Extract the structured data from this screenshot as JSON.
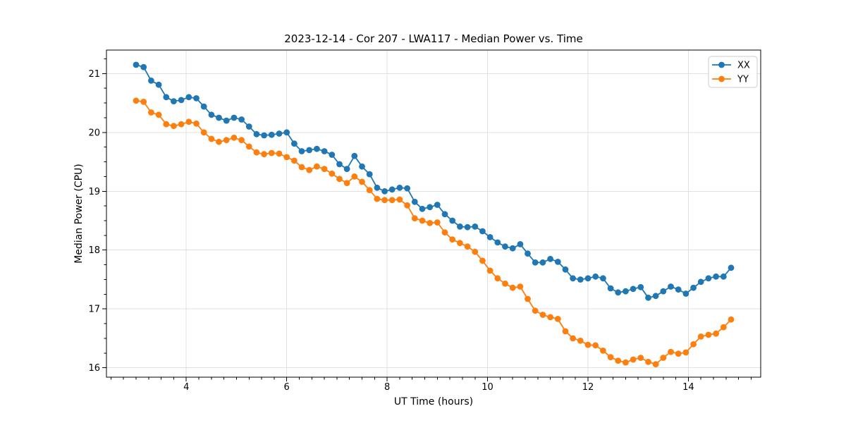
{
  "chart_data": {
    "type": "line",
    "title": "2023-12-14 - Cor 207 - LWA117 - Median Power vs. Time",
    "xlabel": "UT Time (hours)",
    "ylabel": "Median Power (CPU)",
    "xlim": [
      2.41,
      15.44
    ],
    "ylim": [
      15.84,
      21.4
    ],
    "x_ticks": [
      4,
      6,
      8,
      10,
      12,
      14
    ],
    "y_ticks": [
      16,
      17,
      18,
      19,
      20,
      21
    ],
    "minor_tick_step_x": 0.25,
    "minor_tick_step_y": 0.25,
    "grid": true,
    "legend_position": "upper right",
    "x": [
      3.0,
      3.15,
      3.3,
      3.45,
      3.6,
      3.75,
      3.9,
      4.05,
      4.2,
      4.35,
      4.5,
      4.65,
      4.8,
      4.95,
      5.1,
      5.25,
      5.4,
      5.55,
      5.7,
      5.85,
      6.0,
      6.15,
      6.3,
      6.45,
      6.6,
      6.75,
      6.9,
      7.05,
      7.2,
      7.35,
      7.5,
      7.65,
      7.8,
      7.95,
      8.1,
      8.25,
      8.4,
      8.55,
      8.7,
      8.85,
      9.0,
      9.15,
      9.3,
      9.45,
      9.6,
      9.75,
      9.9,
      10.05,
      10.2,
      10.35,
      10.5,
      10.65,
      10.8,
      10.95,
      11.1,
      11.25,
      11.4,
      11.55,
      11.7,
      11.85,
      12.0,
      12.15,
      12.3,
      12.45,
      12.6,
      12.75,
      12.9,
      13.05,
      13.2,
      13.35,
      13.5,
      13.65,
      13.8,
      13.95,
      14.1,
      14.25,
      14.4,
      14.55,
      14.7,
      14.85
    ],
    "series": [
      {
        "name": "XX",
        "color": "#1f77b4",
        "marker": "circle",
        "values": [
          21.15,
          21.11,
          20.88,
          20.81,
          20.6,
          20.53,
          20.55,
          20.6,
          20.58,
          20.44,
          20.3,
          20.25,
          20.2,
          20.25,
          20.22,
          20.1,
          19.97,
          19.95,
          19.96,
          19.98,
          20.0,
          19.81,
          19.68,
          19.7,
          19.72,
          19.68,
          19.62,
          19.46,
          19.38,
          19.6,
          19.42,
          19.29,
          19.06,
          19.0,
          19.03,
          19.06,
          19.05,
          18.82,
          18.7,
          18.73,
          18.77,
          18.61,
          18.5,
          18.4,
          18.39,
          18.4,
          18.32,
          18.22,
          18.13,
          18.06,
          18.03,
          18.1,
          17.94,
          17.79,
          17.79,
          17.85,
          17.8,
          17.67,
          17.52,
          17.5,
          17.52,
          17.55,
          17.52,
          17.35,
          17.28,
          17.3,
          17.34,
          17.37,
          17.19,
          17.22,
          17.3,
          17.38,
          17.33,
          17.26,
          17.36,
          17.46,
          17.52,
          17.55,
          17.55,
          17.7
        ]
      },
      {
        "name": "YY",
        "color": "#ff7f0e",
        "marker": "circle",
        "values": [
          20.54,
          20.52,
          20.34,
          20.3,
          20.14,
          20.11,
          20.14,
          20.18,
          20.15,
          20.0,
          19.89,
          19.84,
          19.87,
          19.91,
          19.87,
          19.76,
          19.66,
          19.63,
          19.65,
          19.64,
          19.58,
          19.52,
          19.41,
          19.36,
          19.42,
          19.38,
          19.3,
          19.21,
          19.14,
          19.25,
          19.16,
          19.02,
          18.87,
          18.85,
          18.85,
          18.86,
          18.76,
          18.54,
          18.5,
          18.46,
          18.47,
          18.3,
          18.18,
          18.12,
          18.06,
          17.97,
          17.82,
          17.65,
          17.52,
          17.43,
          17.36,
          17.38,
          17.17,
          16.97,
          16.9,
          16.86,
          16.83,
          16.62,
          16.5,
          16.46,
          16.39,
          16.38,
          16.29,
          16.18,
          16.12,
          16.09,
          16.14,
          16.17,
          16.1,
          16.06,
          16.17,
          16.27,
          16.24,
          16.26,
          16.4,
          16.53,
          16.56,
          16.58,
          16.69,
          16.82
        ]
      }
    ]
  }
}
